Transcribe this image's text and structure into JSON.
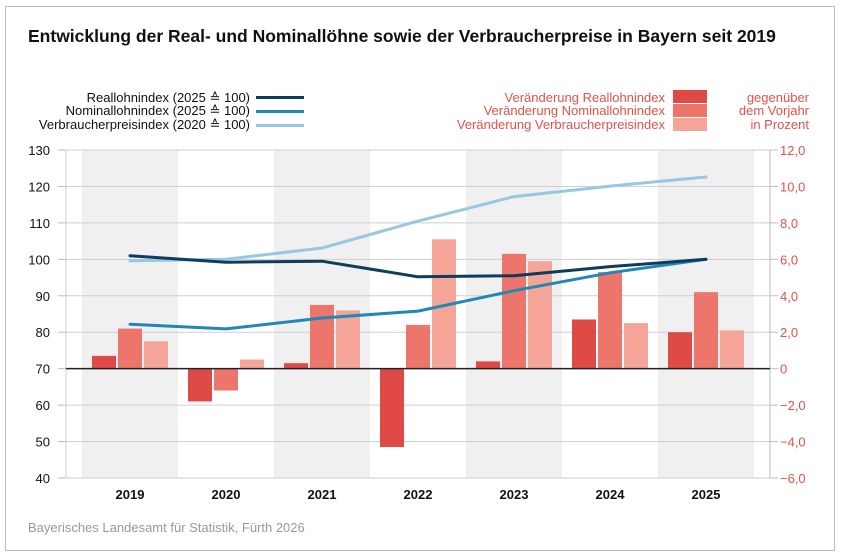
{
  "chart_data": {
    "type": "bar+line",
    "title": "Entwicklung der Real- und Nominallöhne sowie der Verbraucherpreise in Bayern seit 2019",
    "categories": [
      "2019",
      "2020",
      "2021",
      "2022",
      "2023",
      "2024",
      "2025"
    ],
    "left_axis": {
      "ylim": [
        40,
        130
      ],
      "ticks": [
        "130",
        "120",
        "110",
        "100",
        "90",
        "80",
        "70",
        "60",
        "50",
        "40"
      ]
    },
    "right_axis": {
      "ylim": [
        -6,
        12
      ],
      "ticks": [
        "12,0",
        "10,0",
        "8,0",
        "6,0",
        "4,0",
        "2,0",
        "0",
        "−2,0",
        "−4,0",
        "−6,0"
      ],
      "color": "#e0524b"
    },
    "grid": true,
    "lines": [
      {
        "name": "Reallohnindex (2025 ≙ 100)",
        "axis": "left",
        "color": "#0d3d5c",
        "values": [
          101.0,
          99.2,
          99.5,
          95.2,
          95.5,
          98.0,
          100.0
        ]
      },
      {
        "name": "Nominallohnindex (2025 ≙ 100)",
        "axis": "left",
        "color": "#2187b5",
        "values": [
          82.2,
          80.9,
          83.9,
          85.8,
          91.4,
          96.3,
          100.0
        ]
      },
      {
        "name": "Verbraucherpreisindex (2020 ≙ 100)",
        "axis": "left",
        "color": "#98c6e4",
        "values": [
          99.6,
          100.0,
          103.1,
          110.5,
          117.2,
          120.1,
          122.6
        ]
      }
    ],
    "bars": [
      {
        "name": "Veränderung Reallohnindex",
        "axis": "right",
        "color": "#e04a46",
        "values": [
          0.7,
          -1.8,
          0.3,
          -4.3,
          0.4,
          2.7,
          2.0
        ]
      },
      {
        "name": "Veränderung Nominallohnindex",
        "axis": "right",
        "color": "#ec766b",
        "values": [
          2.2,
          -1.2,
          3.5,
          2.4,
          6.3,
          5.3,
          4.2
        ]
      },
      {
        "name": "Veränderung Verbraucherpreisindex",
        "axis": "right",
        "color": "#f4a597",
        "values": [
          1.5,
          0.5,
          3.2,
          7.1,
          5.9,
          2.5,
          2.1
        ]
      }
    ],
    "bar_legend_note": [
      "gegenüber",
      "dem Vorjahr",
      "in Prozent"
    ]
  },
  "source": "Bayerisches Landesamt für Statistik, Fürth 2026"
}
